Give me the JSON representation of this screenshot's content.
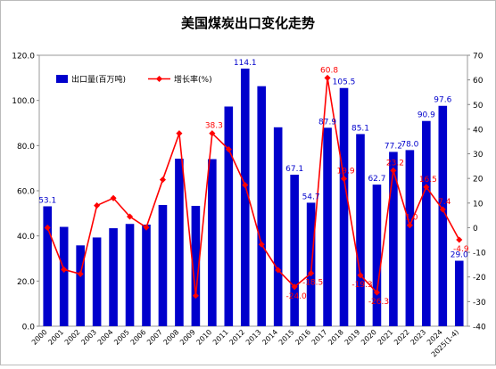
{
  "chart_data": {
    "type": "bar+line",
    "title": "美国煤炭出口变化走势",
    "categories": [
      "2000",
      "2001",
      "2002",
      "2003",
      "2004",
      "2005",
      "2006",
      "2007",
      "2008",
      "2009",
      "2010",
      "2011",
      "2012",
      "2013",
      "2014",
      "2015",
      "2016",
      "2017",
      "2018",
      "2019",
      "2020",
      "2021",
      "2022",
      "2023",
      "2024",
      "2025(1-4)"
    ],
    "series": [
      {
        "name": "出口量(百万吨)",
        "type": "bar",
        "axis": "left",
        "color": "#0000CC",
        "values": [
          53.1,
          44.0,
          35.8,
          39.3,
          43.4,
          45.3,
          45.0,
          53.7,
          74.2,
          53.3,
          74.0,
          97.3,
          114.1,
          106.3,
          88.1,
          67.1,
          54.7,
          87.9,
          105.5,
          85.1,
          62.7,
          77.2,
          78.0,
          90.9,
          97.6,
          29.0
        ],
        "data_labels": {
          "0": "53.1",
          "12": "114.1",
          "15": "67.1",
          "16": "54.7",
          "17": "87.9",
          "18": "105.5",
          "19": "85.1",
          "20": "62.7",
          "21": "77.2",
          "22": "78.0",
          "23": "90.9",
          "24": "97.6",
          "25": "29.0"
        }
      },
      {
        "name": "增长率(%)",
        "type": "line",
        "axis": "right",
        "color": "#FF0000",
        "values": [
          0,
          -17.0,
          -18.8,
          9.0,
          12.0,
          4.5,
          0.1,
          19.5,
          38.3,
          -27.6,
          38.3,
          31.8,
          17.3,
          -6.8,
          -17.2,
          -24.0,
          -18.5,
          60.8,
          19.9,
          -19.3,
          -26.3,
          23.2,
          1.0,
          16.5,
          7.4,
          -4.9
        ],
        "data_labels": {
          "10": "38.3",
          "15": "-24.0",
          "16": "-18.5",
          "17": "60.8",
          "18": "19.9",
          "19": "-19.3",
          "20": "-26.3",
          "21": "23.2",
          "22": "1.0",
          "23": "16.5",
          "24": "7.4",
          "25": "-4.9"
        }
      }
    ],
    "y_left": {
      "lim": [
        0,
        120
      ],
      "ticks": [
        "0.0",
        "20.0",
        "40.0",
        "60.0",
        "80.0",
        "100.0",
        "120.0"
      ]
    },
    "y_right": {
      "lim": [
        -40,
        70
      ],
      "ticks": [
        "-40",
        "-30",
        "-20",
        "-10",
        "0",
        "10",
        "20",
        "30",
        "40",
        "50",
        "60",
        "70"
      ]
    },
    "legend_position": "top-left",
    "grid": false
  },
  "colors": {
    "bar": "#0000CC",
    "line": "#FF0000",
    "bar_label": "#0000CC",
    "line_label": "#FF0000"
  }
}
